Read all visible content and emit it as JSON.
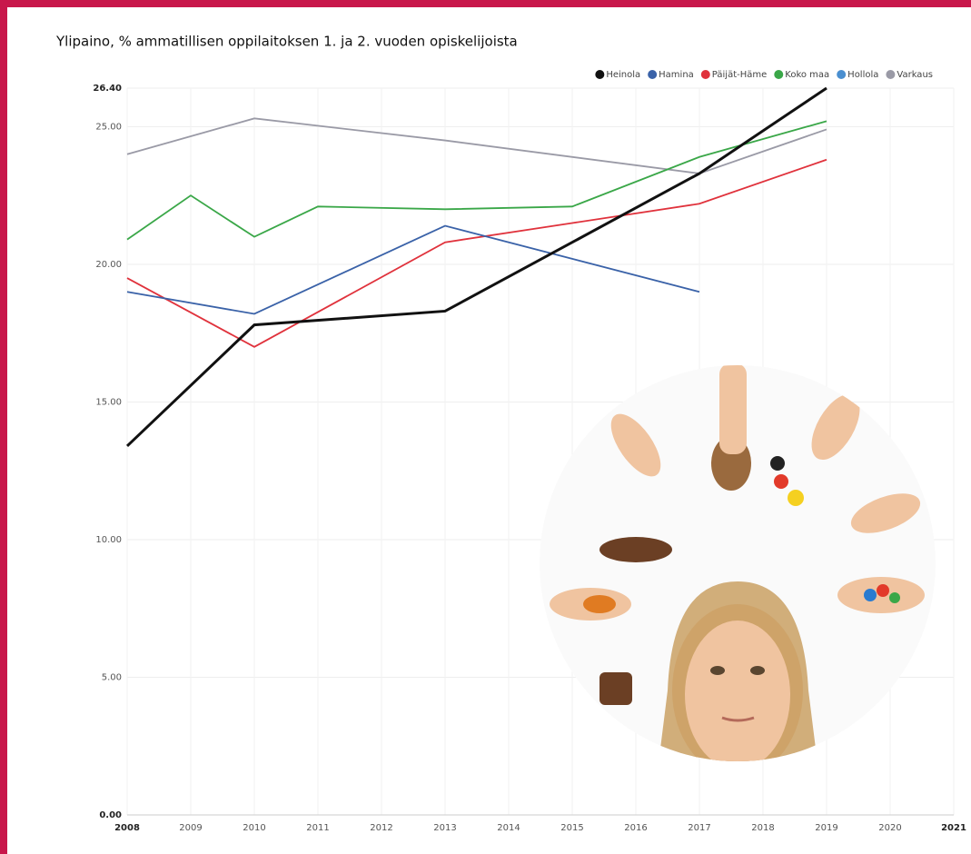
{
  "chart_data": {
    "type": "line",
    "title": "Ylipaino, % ammatillisen oppilaitoksen 1. ja 2. vuoden opiskelijoista",
    "xlim": [
      2008,
      2021
    ],
    "xticks": [
      2008,
      2009,
      2010,
      2011,
      2012,
      2013,
      2014,
      2015,
      2016,
      2017,
      2018,
      2019,
      2020,
      2021
    ],
    "ylim": [
      0,
      26.4
    ],
    "yticks": [
      {
        "value": 0,
        "label": "0.00"
      },
      {
        "value": 5,
        "label": "5.00"
      },
      {
        "value": 10,
        "label": "10.00"
      },
      {
        "value": 15,
        "label": "15.00"
      },
      {
        "value": 20,
        "label": "20.00"
      },
      {
        "value": 25,
        "label": "25.00"
      },
      {
        "value": 26.4,
        "label": "26.40"
      }
    ],
    "grid": true,
    "legend": "top-right",
    "series": [
      {
        "name": "Heinola",
        "color": "#111111",
        "x": [
          2008,
          2010,
          2013,
          2017,
          2019
        ],
        "values": [
          13.4,
          17.8,
          18.3,
          23.3,
          26.4
        ]
      },
      {
        "name": "Hamina",
        "color": "#3a62a8",
        "x": [
          2008,
          2010,
          2013,
          2017
        ],
        "values": [
          19.0,
          18.2,
          21.4,
          19.0
        ]
      },
      {
        "name": "Päijät-Häme",
        "color": "#e0323c",
        "x": [
          2008,
          2010,
          2013,
          2015,
          2017,
          2019
        ],
        "values": [
          19.5,
          17.0,
          20.8,
          21.5,
          22.2,
          23.8
        ]
      },
      {
        "name": "Koko maa",
        "color": "#3aa748",
        "x": [
          2008,
          2009,
          2010,
          2011,
          2013,
          2015,
          2017,
          2019
        ],
        "values": [
          20.9,
          22.5,
          21.0,
          22.1,
          22.0,
          22.1,
          23.9,
          25.2
        ]
      },
      {
        "name": "Hollola",
        "color": "#4a8fd0",
        "x": [],
        "values": []
      },
      {
        "name": "Varkaus",
        "color": "#9a9aa6",
        "x": [
          2008,
          2010,
          2013,
          2017,
          2019
        ],
        "values": [
          24.0,
          25.3,
          24.5,
          23.3,
          24.9
        ]
      }
    ]
  }
}
